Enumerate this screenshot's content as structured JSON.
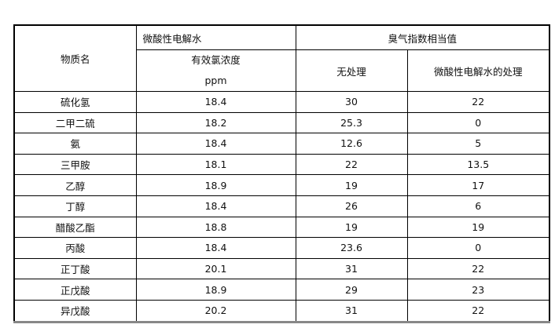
{
  "header": {
    "substance": "物质名",
    "water_group": "微酸性电解水",
    "odor_group": "臭气指数相当值",
    "chlorine_line1": "有效氯浓度",
    "chlorine_line2": "ppm",
    "untreated": "无处理",
    "treated": "微酸性电解水的处理"
  },
  "rows": [
    {
      "name": "硫化氢",
      "chlorine": "18.4",
      "untreated": "30",
      "treated": "22"
    },
    {
      "name": "二甲二硫",
      "chlorine": "18.2",
      "untreated": "25.3",
      "treated": "0"
    },
    {
      "name": "氨",
      "chlorine": "18.4",
      "untreated": "12.6",
      "treated": "5"
    },
    {
      "name": "三甲胺",
      "chlorine": "18.1",
      "untreated": "22",
      "treated": "13.5"
    },
    {
      "name": "乙醇",
      "chlorine": "18.9",
      "untreated": "19",
      "treated": "17"
    },
    {
      "name": "丁醇",
      "chlorine": "18.4",
      "untreated": "26",
      "treated": "6"
    },
    {
      "name": "醋酸乙酯",
      "chlorine": "18.8",
      "untreated": "19",
      "treated": "19"
    },
    {
      "name": "丙酸",
      "chlorine": "18.4",
      "untreated": "23.6",
      "treated": "0"
    },
    {
      "name": "正丁酸",
      "chlorine": "20.1",
      "untreated": "31",
      "treated": "22"
    },
    {
      "name": "正戊酸",
      "chlorine": "18.9",
      "untreated": "29",
      "treated": "23"
    },
    {
      "name": "异戊酸",
      "chlorine": "20.2",
      "untreated": "31",
      "treated": "22"
    }
  ]
}
